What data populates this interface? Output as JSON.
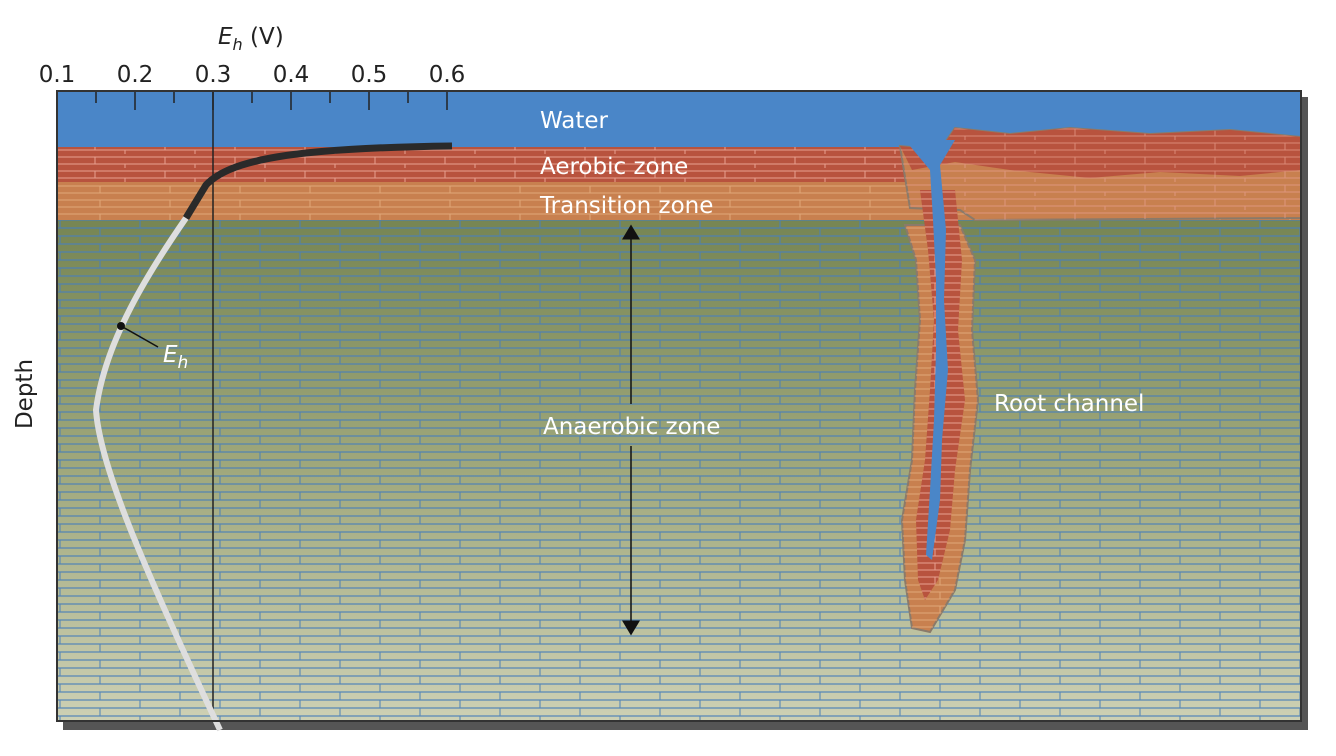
{
  "axis": {
    "title_main": "E",
    "title_sub": "h",
    "title_unit": " (V)",
    "ticks": [
      "0.1",
      "0.2",
      "0.3",
      "0.4",
      "0.5",
      "0.6"
    ],
    "depth_label": "Depth"
  },
  "zones": {
    "water": "Water",
    "aerobic": "Aerobic zone",
    "transition": "Transition zone",
    "anaerobic": "Anaerobic zone",
    "root": "Root channel"
  },
  "curve_label": {
    "main": "E",
    "sub": "h"
  },
  "colors": {
    "water": "#4a86c8",
    "aerobic": "#b8533e",
    "transition": "#c8804f",
    "anaerobic_top": "#7b8a5a",
    "anaerobic_bottom": "#c8cdb0",
    "curve_upper": "#2a2a2a",
    "curve_lower": "#dcdcdc"
  }
}
